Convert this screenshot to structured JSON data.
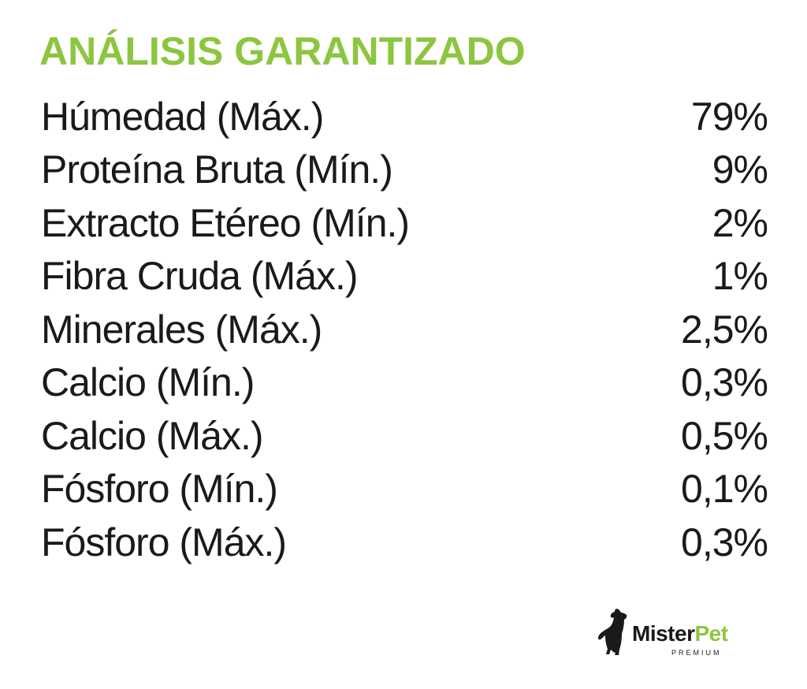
{
  "colors": {
    "title": "#8cc63f",
    "text": "#1a1a1a",
    "brand_dark": "#1a1a1a",
    "brand_green": "#8cc63f"
  },
  "title": "ANÁLISIS GARANTIZADO",
  "rows": [
    {
      "label": "Húmedad (Máx.)",
      "value": "79%"
    },
    {
      "label": "Proteína Bruta (Mín.)",
      "value": "9%"
    },
    {
      "label": "Extracto Etéreo (Mín.)",
      "value": "2%"
    },
    {
      "label": "Fibra Cruda (Máx.)",
      "value": "1%"
    },
    {
      "label": "Minerales (Máx.)",
      "value": "2,5%"
    },
    {
      "label": "Calcio (Mín.)",
      "value": "0,3%"
    },
    {
      "label": "Calcio (Máx.)",
      "value": "0,5%"
    },
    {
      "label": "Fósforo (Mín.)",
      "value": "0,1%"
    },
    {
      "label": "Fósforo (Máx.)",
      "value": "0,3%"
    }
  ],
  "brand": {
    "name_part1": "Mister",
    "name_part2": "Pet",
    "tagline": "PREMIUM",
    "icon": "dog-silhouette-icon"
  }
}
